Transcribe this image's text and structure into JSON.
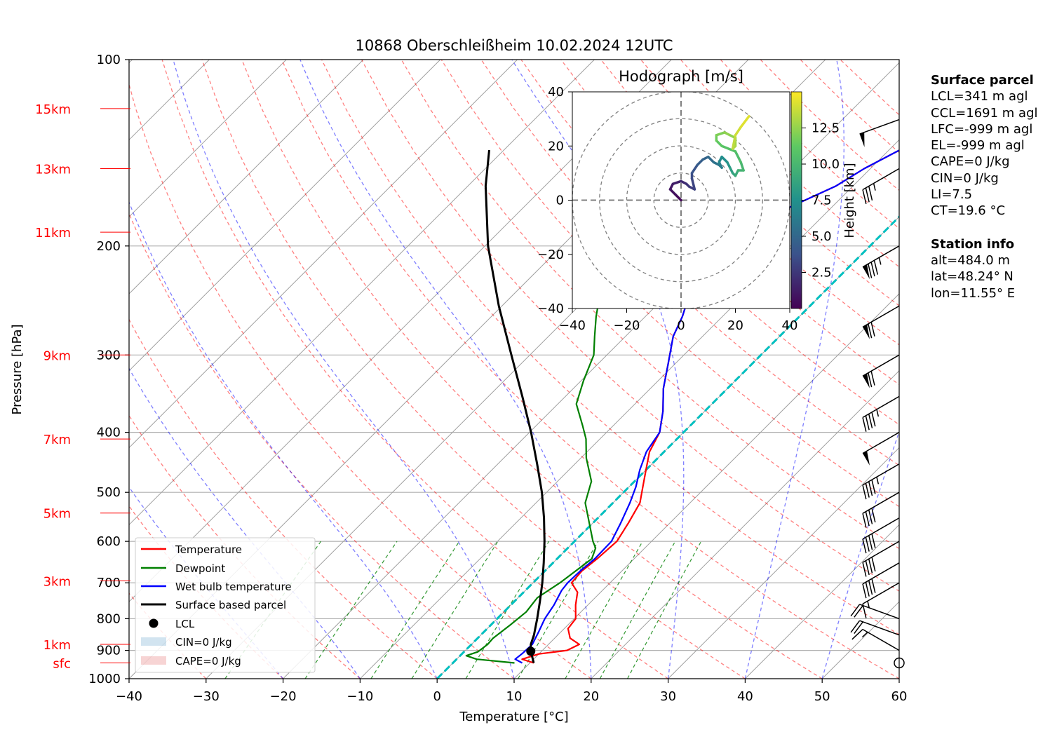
{
  "title": "10868 Oberschleißheim 10.02.2024 12UTC",
  "chart_data": {
    "type": "skew-t",
    "title": "10868 Oberschleißheim 10.02.2024 12UTC",
    "xlabel": "Temperature [°C]",
    "ylabel": "Pressure [hPa]",
    "xlim": [
      -40,
      60
    ],
    "ylim": [
      1000,
      100
    ],
    "x_ticks": [
      "−40",
      "−30",
      "−20",
      "−10",
      "0",
      "10",
      "20",
      "30",
      "40",
      "50",
      "60"
    ],
    "y_ticks": [
      {
        "p": 100,
        "label": "100"
      },
      {
        "p": 200,
        "label": "200"
      },
      {
        "p": 300,
        "label": "300"
      },
      {
        "p": 400,
        "label": "400"
      },
      {
        "p": 500,
        "label": "500"
      },
      {
        "p": 600,
        "label": "600"
      },
      {
        "p": 700,
        "label": "700"
      },
      {
        "p": 800,
        "label": "800"
      },
      {
        "p": 900,
        "label": "900"
      },
      {
        "p": 1000,
        "label": "1000"
      }
    ],
    "height_labels": [
      {
        "p": 120,
        "label": "15km"
      },
      {
        "p": 150,
        "label": "13km"
      },
      {
        "p": 190,
        "label": "11km"
      },
      {
        "p": 300,
        "label": "9km"
      },
      {
        "p": 410,
        "label": "7km"
      },
      {
        "p": 540,
        "label": "5km"
      },
      {
        "p": 695,
        "label": "3km"
      },
      {
        "p": 880,
        "label": "1km"
      },
      {
        "p": 943,
        "label": "sfc"
      }
    ],
    "series": [
      {
        "name": "Temperature",
        "color": "#ff0000",
        "points": [
          [
            943,
            10.5
          ],
          [
            930,
            8.5
          ],
          [
            912,
            10.0
          ],
          [
            900,
            13.2
          ],
          [
            880,
            14.0
          ],
          [
            860,
            12.0
          ],
          [
            830,
            10.5
          ],
          [
            800,
            10.2
          ],
          [
            760,
            8.4
          ],
          [
            725,
            7.0
          ],
          [
            700,
            5.0
          ],
          [
            670,
            4.8
          ],
          [
            640,
            5.2
          ],
          [
            600,
            5.5
          ],
          [
            560,
            4.6
          ],
          [
            520,
            3.5
          ],
          [
            490,
            1.8
          ],
          [
            460,
            0.0
          ],
          [
            430,
            -1.9
          ],
          [
            400,
            -3.1
          ],
          [
            370,
            -5.4
          ],
          [
            340,
            -8.3
          ],
          [
            310,
            -10.9
          ],
          [
            280,
            -13.8
          ],
          [
            260,
            -15.2
          ],
          [
            240,
            -17.1
          ],
          [
            225,
            -18.3
          ],
          [
            210,
            -18.1
          ],
          [
            195,
            -17.9
          ],
          [
            180,
            -17.0
          ],
          [
            170,
            -14.7
          ],
          [
            160,
            -12.2
          ],
          [
            150,
            -10.8
          ],
          [
            140,
            -8.6
          ],
          [
            135,
            -7.3
          ],
          [
            130,
            -4.6
          ],
          [
            120,
            -1.4
          ],
          [
            112,
            -0.9
          ]
        ]
      },
      {
        "name": "Dewpoint",
        "color": "#008000",
        "points": [
          [
            943,
            8.0
          ],
          [
            930,
            2.6
          ],
          [
            918,
            0.8
          ],
          [
            905,
            1.8
          ],
          [
            880,
            2.1
          ],
          [
            860,
            2.0
          ],
          [
            820,
            2.5
          ],
          [
            780,
            2.9
          ],
          [
            740,
            2.5
          ],
          [
            700,
            3.5
          ],
          [
            670,
            4.0
          ],
          [
            640,
            4.5
          ],
          [
            615,
            3.6
          ],
          [
            600,
            2.4
          ],
          [
            560,
            -0.5
          ],
          [
            520,
            -3.6
          ],
          [
            480,
            -5.6
          ],
          [
            440,
            -9.3
          ],
          [
            410,
            -11.8
          ],
          [
            390,
            -14.0
          ],
          [
            360,
            -17.6
          ],
          [
            330,
            -19.7
          ],
          [
            300,
            -21.7
          ],
          [
            280,
            -24.0
          ],
          [
            260,
            -26.4
          ],
          [
            240,
            -28.7
          ],
          [
            225,
            -30.1
          ],
          [
            210,
            -32.8
          ],
          [
            200,
            -34.3
          ],
          [
            190,
            -37.0
          ],
          [
            180,
            -38.9
          ],
          [
            170,
            -40.2
          ],
          [
            160,
            -40.9
          ],
          [
            150,
            -40.8
          ],
          [
            140,
            -39.1
          ],
          [
            130,
            -37.5
          ],
          [
            122,
            -35.3
          ],
          [
            118,
            -32.8
          ],
          [
            115,
            -31.7
          ]
        ]
      },
      {
        "name": "Wet bulb temperature",
        "color": "#0000ff",
        "points": [
          [
            943,
            9.0
          ],
          [
            930,
            7.6
          ],
          [
            910,
            7.8
          ],
          [
            880,
            7.9
          ],
          [
            840,
            7.1
          ],
          [
            800,
            6.2
          ],
          [
            760,
            5.6
          ],
          [
            720,
            4.7
          ],
          [
            700,
            4.5
          ],
          [
            670,
            4.6
          ],
          [
            640,
            4.9
          ],
          [
            600,
            4.8
          ],
          [
            560,
            3.6
          ],
          [
            520,
            2.2
          ],
          [
            490,
            0.9
          ],
          [
            460,
            -0.8
          ],
          [
            430,
            -2.3
          ],
          [
            400,
            -3.1
          ],
          [
            370,
            -5.4
          ],
          [
            340,
            -8.3
          ],
          [
            310,
            -10.9
          ],
          [
            280,
            -13.8
          ],
          [
            260,
            -15.2
          ],
          [
            240,
            -17.1
          ],
          [
            225,
            -18.3
          ],
          [
            210,
            -18.1
          ],
          [
            195,
            -17.9
          ],
          [
            180,
            -17.0
          ],
          [
            170,
            -14.7
          ],
          [
            160,
            -12.2
          ],
          [
            150,
            -10.8
          ],
          [
            140,
            -8.6
          ],
          [
            135,
            -7.3
          ],
          [
            130,
            -4.6
          ],
          [
            120,
            -1.4
          ],
          [
            112,
            -0.9
          ]
        ]
      },
      {
        "name": "Surface based parcel",
        "color": "#000000",
        "points": [
          [
            943,
            10.5
          ],
          [
            903,
            8.6
          ],
          [
            880,
            7.7
          ],
          [
            850,
            6.9
          ],
          [
            800,
            5.2
          ],
          [
            750,
            3.3
          ],
          [
            700,
            1.2
          ],
          [
            650,
            -1.2
          ],
          [
            600,
            -3.9
          ],
          [
            550,
            -7.0
          ],
          [
            500,
            -10.6
          ],
          [
            450,
            -14.9
          ],
          [
            400,
            -19.8
          ],
          [
            350,
            -25.6
          ],
          [
            300,
            -32.4
          ],
          [
            250,
            -40.4
          ],
          [
            200,
            -49.6
          ],
          [
            160,
            -57.7
          ],
          [
            140,
            -61.9
          ]
        ]
      }
    ],
    "lcl": {
      "p": 903,
      "t": 8.6,
      "label": "LCL"
    },
    "legend": {
      "placement": "lower-left",
      "items": [
        "Temperature",
        "Dewpoint",
        "Wet bulb temperature",
        "Surface based parcel",
        "LCL",
        "CIN=0 J/kg",
        "CAPE=0 J/kg"
      ]
    },
    "wind_barbs": [
      {
        "p": 943,
        "speed_kt": 5,
        "dir_deg": 0,
        "calm": true
      },
      {
        "p": 900,
        "speed_kt": 15,
        "dir_deg": 300
      },
      {
        "p": 850,
        "speed_kt": 20,
        "dir_deg": 290
      },
      {
        "p": 800,
        "speed_kt": 20,
        "dir_deg": 290
      },
      {
        "p": 700,
        "speed_kt": 15,
        "dir_deg": 240
      },
      {
        "p": 650,
        "speed_kt": 40,
        "dir_deg": 240
      },
      {
        "p": 600,
        "speed_kt": 40,
        "dir_deg": 240
      },
      {
        "p": 550,
        "speed_kt": 40,
        "dir_deg": 240
      },
      {
        "p": 500,
        "speed_kt": 40,
        "dir_deg": 240
      },
      {
        "p": 450,
        "speed_kt": 45,
        "dir_deg": 240
      },
      {
        "p": 400,
        "speed_kt": 50,
        "dir_deg": 240
      },
      {
        "p": 350,
        "speed_kt": 45,
        "dir_deg": 240
      },
      {
        "p": 300,
        "speed_kt": 70,
        "dir_deg": 240
      },
      {
        "p": 250,
        "speed_kt": 70,
        "dir_deg": 240
      },
      {
        "p": 200,
        "speed_kt": 85,
        "dir_deg": 240
      },
      {
        "p": 150,
        "speed_kt": 35,
        "dir_deg": 240
      },
      {
        "p": 125,
        "speed_kt": 50,
        "dir_deg": 250
      }
    ],
    "hodograph": {
      "title": "Hodograph [m/s]",
      "xlim": [
        -40,
        40
      ],
      "ylim": [
        -40,
        40
      ],
      "ticks": [
        "−40",
        "−20",
        "0",
        "20",
        "40"
      ],
      "rings": [
        10,
        20,
        30,
        40
      ],
      "colorbar_label": "Height [km]",
      "colorbar_ticks": [
        "2.5",
        "5.0",
        "7.5",
        "10.0",
        "12.5"
      ],
      "u": [
        0,
        -2,
        -4,
        -3,
        0,
        2,
        3,
        5,
        4,
        4,
        6,
        8,
        10,
        12,
        14,
        15,
        14,
        15,
        17,
        18,
        19,
        20,
        21,
        23,
        22,
        20,
        15,
        13,
        13,
        16,
        20,
        20,
        19,
        20,
        22,
        25
      ],
      "v": [
        0,
        2,
        4,
        6,
        7,
        6,
        5,
        4,
        8,
        10,
        13,
        15,
        16,
        14,
        13,
        12,
        14,
        16,
        14,
        12,
        10,
        9,
        11,
        11,
        14,
        18,
        20,
        22,
        24,
        25,
        23,
        20,
        19,
        24,
        27,
        31
      ],
      "h": [
        0.3,
        0.7,
        1.0,
        1.4,
        1.9,
        2.3,
        2.7,
        3.1,
        3.5,
        3.9,
        4.4,
        4.8,
        5.2,
        5.7,
        6.1,
        6.5,
        7.0,
        7.4,
        7.8,
        8.3,
        8.7,
        9.2,
        9.6,
        10.0,
        10.4,
        10.8,
        11.2,
        11.6,
        12.0,
        12.4,
        12.8,
        13.1,
        13.5,
        13.9,
        14.3,
        14.7
      ]
    },
    "colors": {
      "temperature": "#ff0000",
      "dewpoint": "#008000",
      "wetbulb": "#0000ff",
      "parcel": "#000000",
      "freezing": "#00bfbf",
      "height_labels": "#ff0000"
    }
  },
  "surface_parcel": {
    "header": "Surface parcel",
    "lines": [
      "LCL=341 m agl",
      "CCL=1691 m agl",
      "LFC=-999 m agl",
      "EL=-999 m agl",
      "CAPE=0 J/kg",
      "CIN=0 J/kg",
      "LI=7.5",
      "CT=19.6 °C"
    ]
  },
  "station_info": {
    "header": "Station info",
    "lines": [
      "alt=484.0 m",
      "lat=48.24° N",
      "lon=11.55° E"
    ]
  }
}
